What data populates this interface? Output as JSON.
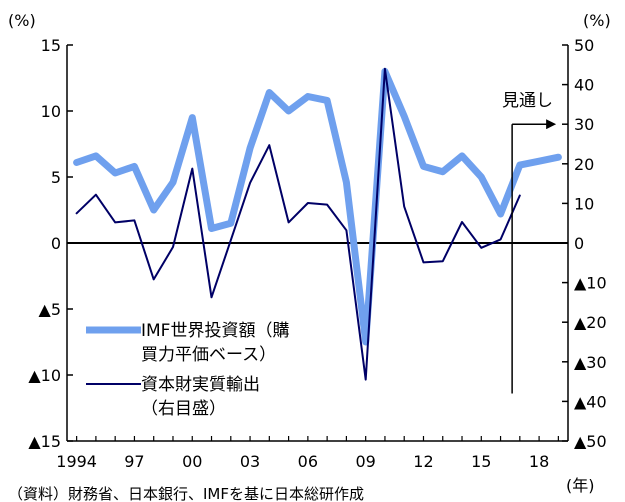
{
  "chart_data": {
    "type": "line",
    "left_axis": {
      "unit": "(%)",
      "ylim": [
        -15,
        15
      ],
      "ticks": [
        15,
        10,
        5,
        0,
        -5,
        -10,
        -15
      ],
      "tick_labels": [
        "15",
        "10",
        "5",
        "0",
        "▲5",
        "▲10",
        "▲15"
      ]
    },
    "right_axis": {
      "unit": "(%)",
      "ylim": [
        -50,
        50
      ],
      "ticks": [
        50,
        40,
        30,
        20,
        10,
        0,
        -10,
        -20,
        -30,
        -40,
        -50
      ],
      "tick_labels": [
        "50",
        "40",
        "30",
        "20",
        "10",
        "0",
        "▲10",
        "▲20",
        "▲30",
        "▲40",
        "▲50"
      ]
    },
    "x_axis": {
      "unit": "(年)",
      "range": [
        1993.5,
        2019.5
      ],
      "ticks": [
        1994,
        1997,
        2000,
        2003,
        2006,
        2009,
        2012,
        2015,
        2018
      ],
      "tick_labels": [
        "1994",
        "97",
        "00",
        "03",
        "06",
        "09",
        "12",
        "15",
        "18"
      ]
    },
    "series": [
      {
        "name": "IMF世界投資額（購買力平価ベース）",
        "legend_lines": [
          "IMF世界投資額（購",
          "買力平価ベース）"
        ],
        "axis": "left",
        "color": "#6fa0ee",
        "x": [
          1994,
          1995,
          1996,
          1997,
          1998,
          1999,
          2000,
          2001,
          2002,
          2003,
          2004,
          2005,
          2006,
          2007,
          2008,
          2009,
          2010,
          2011,
          2012,
          2013,
          2014,
          2015,
          2016,
          2017,
          2018,
          2019
        ],
        "values": [
          6.1,
          6.6,
          5.3,
          5.8,
          2.5,
          4.6,
          9.5,
          1.1,
          1.5,
          7.2,
          11.4,
          10.0,
          11.1,
          10.8,
          4.6,
          -7.5,
          13.0,
          9.6,
          5.8,
          5.4,
          6.6,
          5.0,
          2.2,
          5.9,
          6.2,
          6.5
        ]
      },
      {
        "name": "資本財実質輸出（右目盛）",
        "legend_lines": [
          "資本財実質輸出",
          "（右目盛）"
        ],
        "axis": "right",
        "color": "#000066",
        "x": [
          1994,
          1995,
          1996,
          1997,
          1998,
          1999,
          2000,
          2001,
          2002,
          2003,
          2004,
          2005,
          2006,
          2007,
          2008,
          2009,
          2010,
          2011,
          2012,
          2013,
          2014,
          2015,
          2016,
          2017
        ],
        "values": [
          7.5,
          12.2,
          5.2,
          5.7,
          -9.2,
          -1.0,
          18.8,
          -13.7,
          0.7,
          15.2,
          24.7,
          5.2,
          10.1,
          9.7,
          3.2,
          -34.5,
          44.0,
          9.2,
          -4.9,
          -4.6,
          5.3,
          -1.2,
          0.9,
          12.0
        ]
      }
    ],
    "annotation": {
      "text": "見通し",
      "start_x": 2016.6
    },
    "source_note": "（資料）財務省、日本銀行、IMFを基に日本総研作成"
  }
}
